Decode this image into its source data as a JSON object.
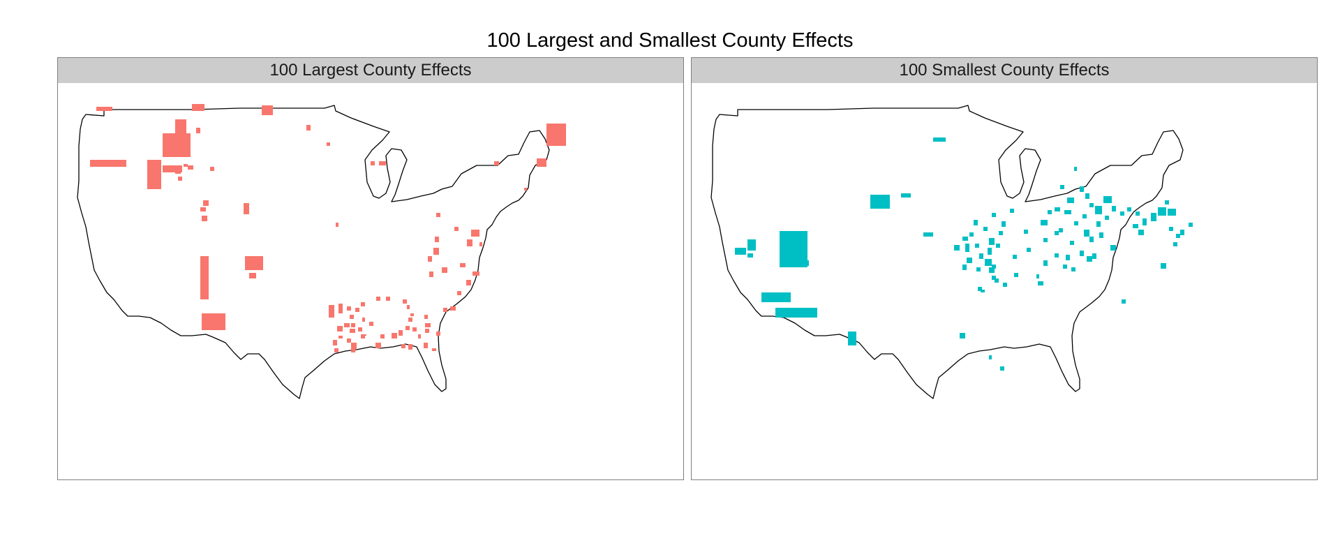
{
  "figure": {
    "title": "100 Largest and Smallest County Effects"
  },
  "panels": [
    {
      "strip_label": "100 Largest County Effects",
      "fill_color": "#F8766D"
    },
    {
      "strip_label": "100 Smallest County Effects",
      "fill_color": "#00BFC4"
    }
  ],
  "colors": {
    "outline": "#000000",
    "strip_background": "#CCCCCC",
    "panel_border": "#7F7F7F"
  }
}
